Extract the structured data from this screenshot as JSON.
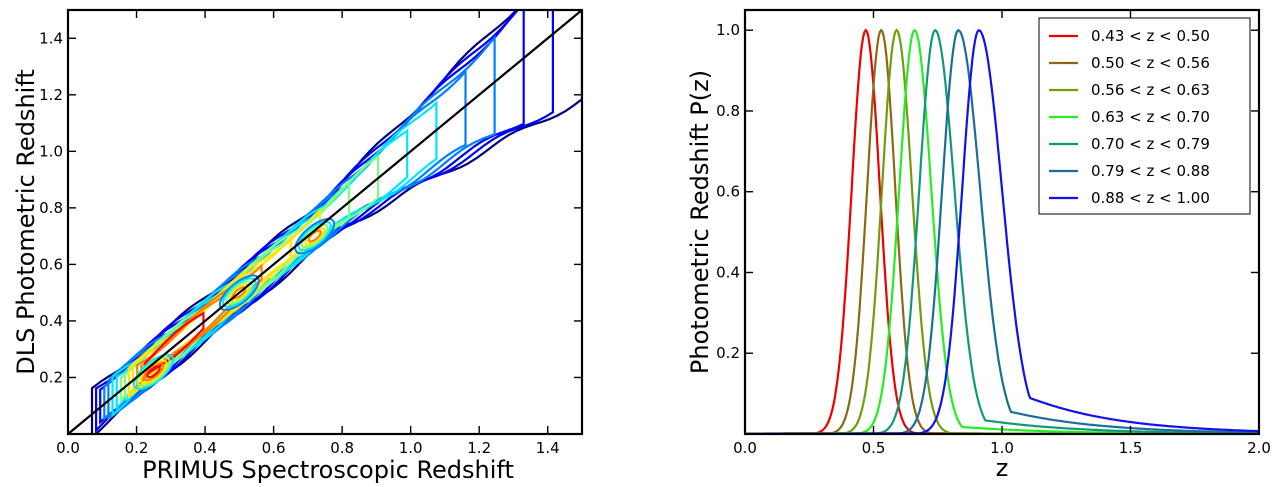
{
  "chart_data": [
    {
      "type": "contour",
      "title": "",
      "xlabel": "PRIMUS Spectroscopic Redshift",
      "ylabel": "DLS Photometric Redshift",
      "xlim": [
        0.0,
        1.5
      ],
      "ylim": [
        0.0,
        1.5
      ],
      "xticks": [
        "0.0",
        "0.2",
        "0.4",
        "0.6",
        "0.8",
        "1.0",
        "1.2",
        "1.4"
      ],
      "yticks": [
        "0.2",
        "0.4",
        "0.6",
        "0.8",
        "1.0",
        "1.2",
        "1.4"
      ],
      "reference_line": {
        "name": "",
        "x": [
          0.0,
          1.5
        ],
        "y": [
          0.0,
          1.5
        ],
        "color": "#000000"
      },
      "density_peaks": [
        {
          "x": 0.25,
          "y": 0.22
        },
        {
          "x": 0.5,
          "y": 0.5
        },
        {
          "x": 0.72,
          "y": 0.7
        }
      ],
      "colormap": [
        "#00007f",
        "#0000ff",
        "#007fff",
        "#00e5ff",
        "#7fff7f",
        "#ffe500",
        "#ff7f00",
        "#ff0000"
      ],
      "grid": false
    },
    {
      "type": "line",
      "title": "",
      "xlabel": "z",
      "ylabel": "Photometric Redshift P(z)",
      "xlim": [
        0.0,
        2.0
      ],
      "ylim": [
        0.0,
        1.05
      ],
      "xticks": [
        "0.0",
        "0.5",
        "1.0",
        "1.5",
        "2.0"
      ],
      "yticks": [
        "0.2",
        "0.4",
        "0.6",
        "0.8",
        "1.0"
      ],
      "legend_position": "top-right",
      "grid": false,
      "series": [
        {
          "name": "0.43 < z < 0.50",
          "color": "#ee0000",
          "peak": 0.47,
          "sigma_left": 0.055,
          "sigma_right": 0.055,
          "tail": 0.0
        },
        {
          "name": "0.50 < z < 0.56",
          "color": "#8b6914",
          "peak": 0.53,
          "sigma_left": 0.055,
          "sigma_right": 0.055,
          "tail": 0.0
        },
        {
          "name": "0.56 < z < 0.63",
          "color": "#6e9e0b",
          "peak": 0.59,
          "sigma_left": 0.057,
          "sigma_right": 0.06,
          "tail": 0.0
        },
        {
          "name": "0.63 < z < 0.70",
          "color": "#22ee22",
          "peak": 0.66,
          "sigma_left": 0.06,
          "sigma_right": 0.065,
          "tail": 0.03
        },
        {
          "name": "0.70 < z < 0.79",
          "color": "#119977",
          "peak": 0.74,
          "sigma_left": 0.062,
          "sigma_right": 0.075,
          "tail": 0.06
        },
        {
          "name": "0.79 < z < 0.88",
          "color": "#1a6e99",
          "peak": 0.83,
          "sigma_left": 0.063,
          "sigma_right": 0.085,
          "tail": 0.1
        },
        {
          "name": "0.88 < z < 1.00",
          "color": "#1111ee",
          "peak": 0.91,
          "sigma_left": 0.065,
          "sigma_right": 0.09,
          "tail": 0.16
        }
      ]
    }
  ]
}
